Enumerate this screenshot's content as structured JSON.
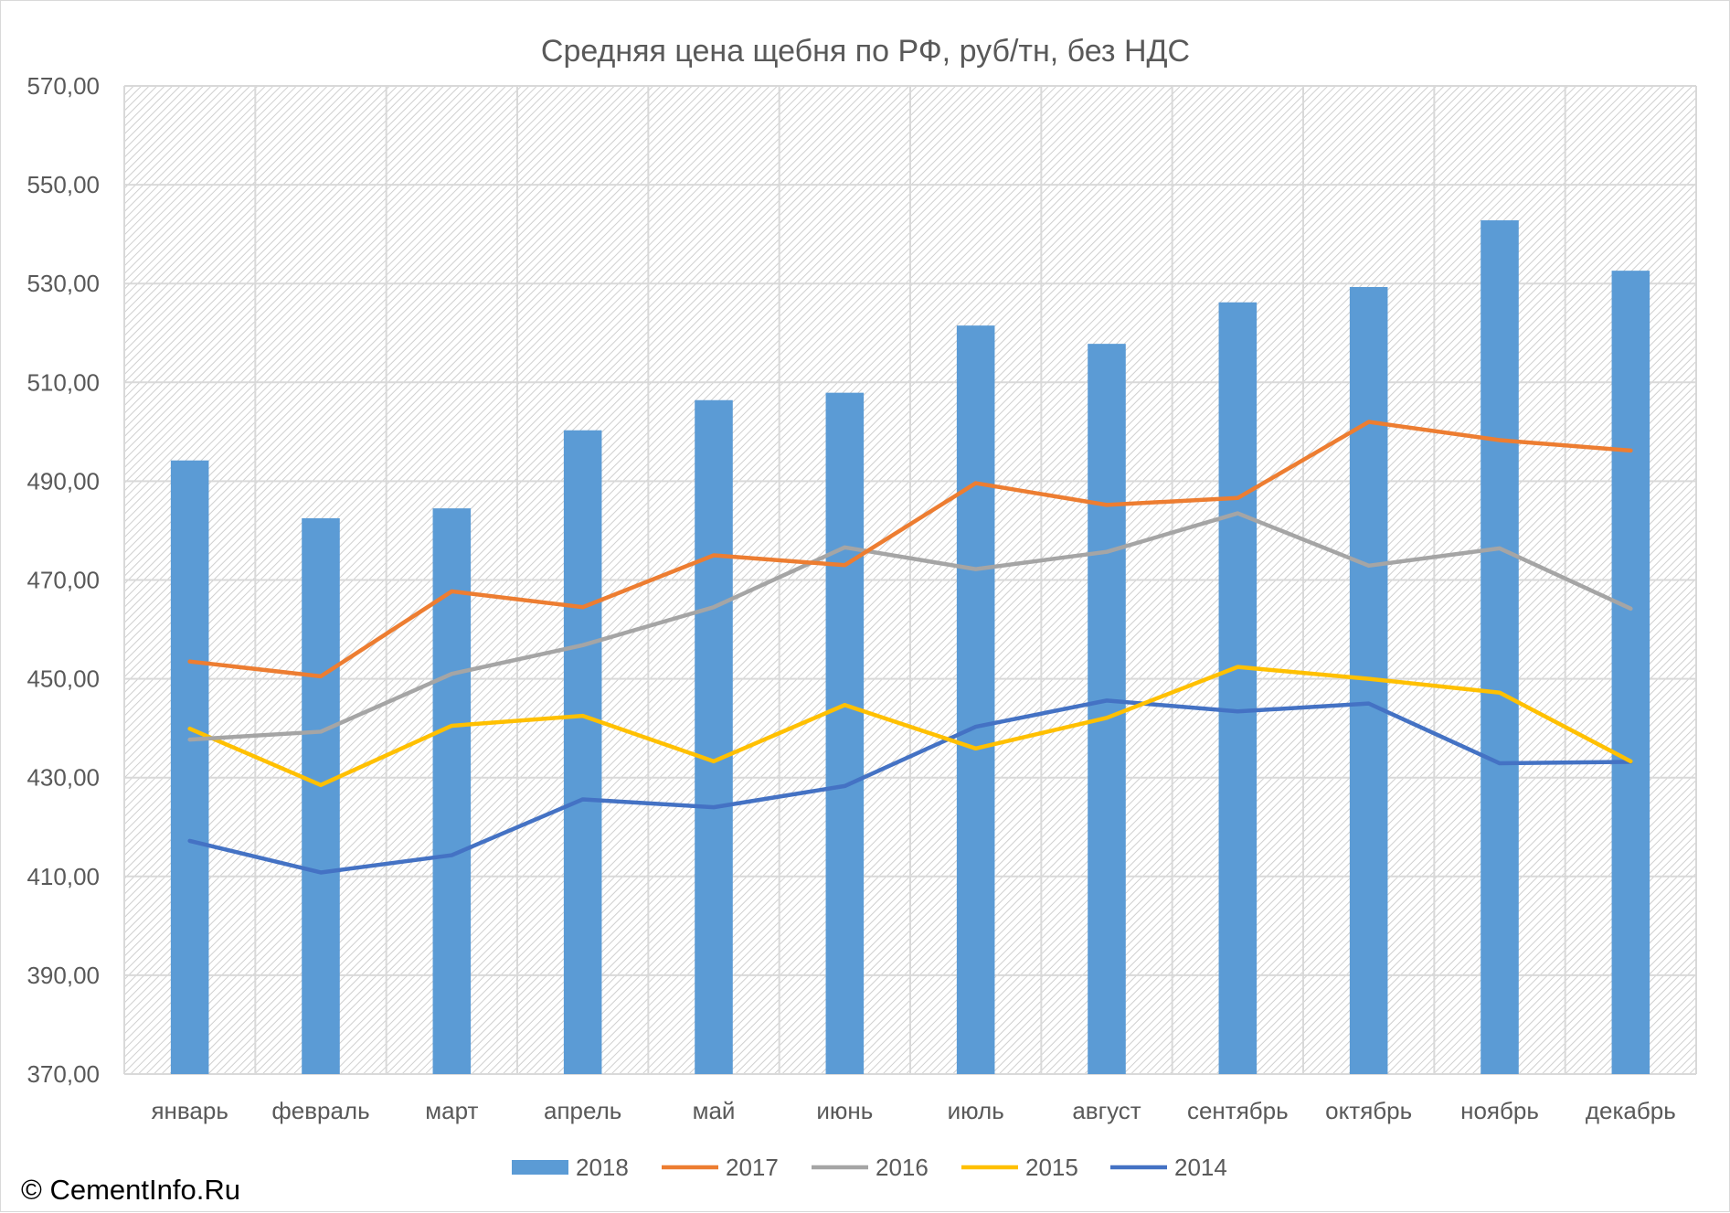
{
  "copyright": "© CementInfo.Ru",
  "colors": {
    "2018": "#5b9bd5",
    "2017": "#ed7d31",
    "2016": "#a5a5a5",
    "2015": "#ffc000",
    "2014": "#4472c4",
    "grid": "#d9d9d9"
  },
  "chart_data": {
    "type": "bar",
    "title": "Средняя цена щебня по РФ, руб/тн, без НДС",
    "categories": [
      "январь",
      "февраль",
      "март",
      "апрель",
      "май",
      "июнь",
      "июль",
      "август",
      "сентябрь",
      "октябрь",
      "ноябрь",
      "декабрь"
    ],
    "ylim": [
      370,
      570
    ],
    "y_ticks": [
      "370,00",
      "390,00",
      "410,00",
      "430,00",
      "450,00",
      "470,00",
      "490,00",
      "510,00",
      "530,00",
      "550,00",
      "570,00"
    ],
    "y_tick_values": [
      370,
      390,
      410,
      430,
      450,
      470,
      490,
      510,
      530,
      550,
      570
    ],
    "grid": true,
    "legend": "bottom",
    "series": [
      {
        "name": "2018",
        "kind": "bar",
        "values": [
          494.2,
          482.5,
          484.5,
          500.3,
          506.4,
          507.9,
          521.5,
          517.8,
          526.2,
          529.3,
          542.8,
          532.6
        ]
      },
      {
        "name": "2017",
        "kind": "line",
        "values": [
          453.5,
          450.5,
          467.7,
          464.5,
          475.0,
          473.0,
          489.6,
          485.2,
          486.6,
          502.0,
          498.3,
          496.2
        ]
      },
      {
        "name": "2016",
        "kind": "line",
        "values": [
          437.7,
          439.3,
          451.0,
          456.8,
          464.5,
          476.6,
          472.2,
          475.7,
          483.5,
          472.9,
          476.4,
          464.2
        ]
      },
      {
        "name": "2015",
        "kind": "line",
        "values": [
          439.9,
          428.5,
          440.5,
          442.5,
          433.3,
          444.7,
          435.9,
          442.1,
          452.4,
          450.0,
          447.2,
          433.3
        ]
      },
      {
        "name": "2014",
        "kind": "line",
        "values": [
          417.2,
          410.8,
          414.3,
          425.6,
          424.0,
          428.3,
          440.3,
          445.6,
          443.4,
          445.0,
          432.9,
          433.2
        ]
      }
    ]
  }
}
